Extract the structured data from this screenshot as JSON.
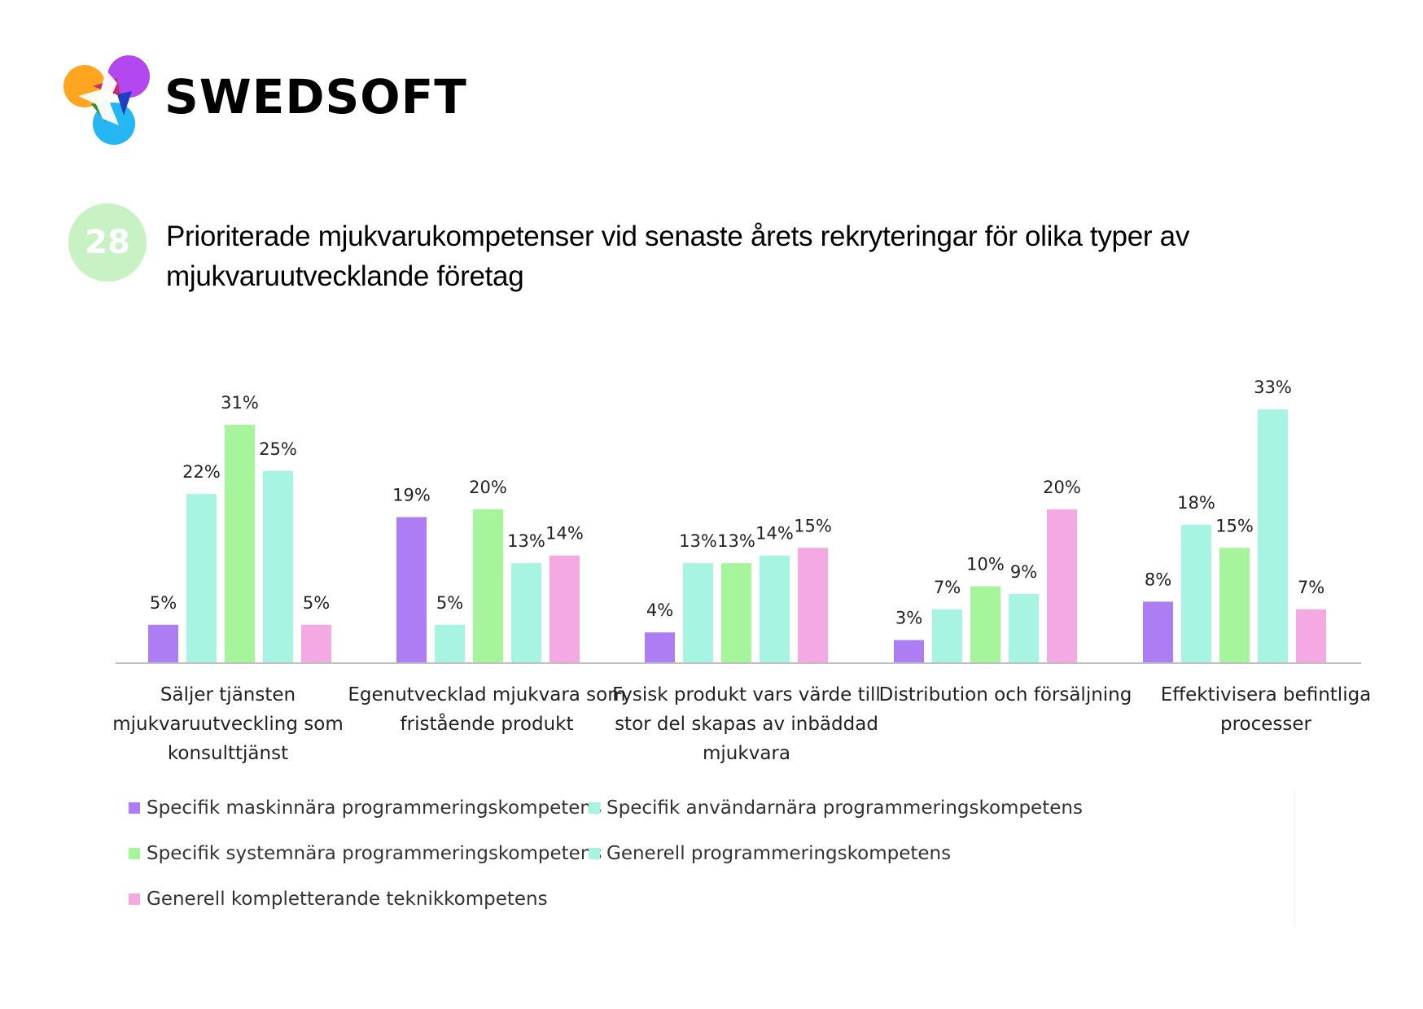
{
  "brand": {
    "name": "SWEDSOFT"
  },
  "badge": {
    "number": "28"
  },
  "title": "Prioriterade mjukvarukompetenser vid senaste årets rekryteringar för olika typer av mjukvaruutvecklande företag",
  "colors": {
    "purple": "#ad7df4",
    "mint": "#a6f4e1",
    "green": "#a6f59c",
    "pink": "#f4a9e3",
    "badge": "#c8f2c4",
    "axis": "#bfbfbf"
  },
  "legend": [
    {
      "label": "Specifik maskinnära programmeringskompetens",
      "color": "#ad7df4"
    },
    {
      "label": "Specifik användarnära programmeringskompetens",
      "color": "#a6f4e1"
    },
    {
      "label": "Specifik systemnära programmeringskompetens",
      "color": "#a6f59c"
    },
    {
      "label": "Generell programmeringskompetens",
      "color": "#a6f4e1"
    },
    {
      "label": "Generell kompletterande teknikkompetens",
      "color": "#f4a9e3"
    }
  ],
  "chart_data": {
    "type": "bar",
    "categories": [
      [
        "Säljer tjänsten",
        "mjukvaruutveckling som",
        "konsulttjänst"
      ],
      [
        "Egenutvecklad mjukvara som",
        "fristående produkt"
      ],
      [
        "Fysisk produkt vars värde till",
        "stor del skapas av inbäddad",
        "mjukvara"
      ],
      [
        "Distribution och försäljning"
      ],
      [
        "Effektivisera befintliga",
        "processer"
      ]
    ],
    "series": [
      {
        "name": "Specifik maskinnära programmeringskompetens",
        "color": "#ad7df4",
        "values": [
          5,
          19,
          4,
          3,
          8
        ],
        "labels": [
          "5%",
          "19%",
          "4%",
          "3%",
          "8%"
        ]
      },
      {
        "name": "Specifik användarnära programmeringskompetens",
        "color": "#a6f4e1",
        "values": [
          22,
          5,
          13,
          7,
          18
        ],
        "labels": [
          "22%",
          "5%",
          "13%",
          "7%",
          "18%"
        ]
      },
      {
        "name": "Specifik systemnära programmeringskompetens",
        "color": "#a6f59c",
        "values": [
          31,
          20,
          13,
          10,
          15
        ],
        "labels": [
          "31%",
          "20%",
          "13%",
          "10%",
          "15%"
        ]
      },
      {
        "name": "Generell programmeringskompetens",
        "color": "#a6f4e1",
        "values": [
          25,
          13,
          14,
          9,
          33
        ],
        "labels": [
          "25%",
          "13%",
          "14%",
          "9%",
          "33%"
        ]
      },
      {
        "name": "Generell kompletterande teknikkompetens",
        "color": "#f4a9e3",
        "values": [
          5,
          14,
          15,
          20,
          7
        ],
        "labels": [
          "5%",
          "14%",
          "15%",
          "20%",
          "7%"
        ]
      }
    ],
    "ylim": [
      0,
      35
    ],
    "grid": false,
    "legend_position": "bottom"
  }
}
